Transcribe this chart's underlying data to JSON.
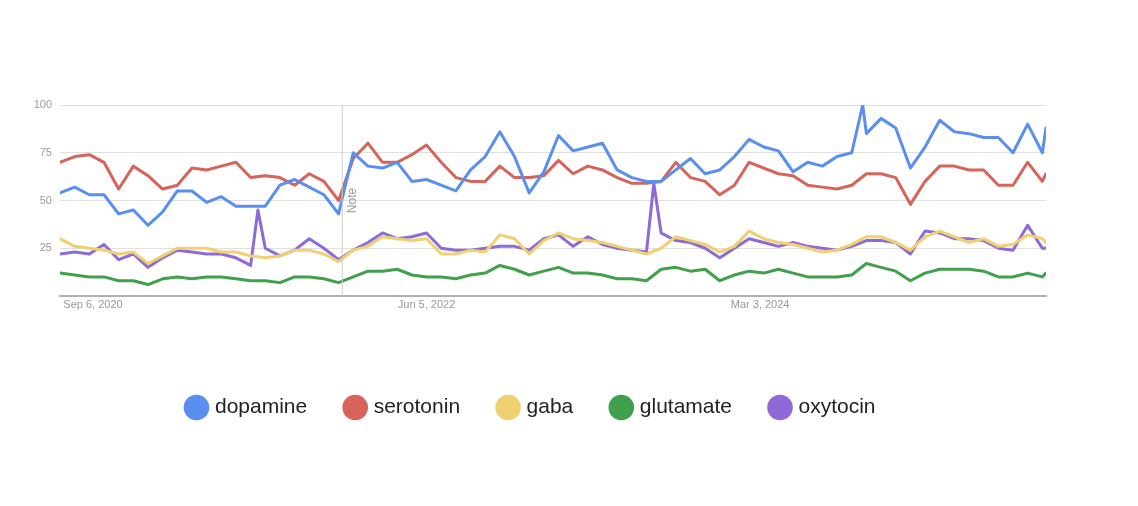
{
  "chart_data": {
    "type": "line",
    "x": [
      "2020-07-05",
      "2020-08-02",
      "2020-08-30",
      "2020-09-27",
      "2020-10-25",
      "2020-11-22",
      "2020-12-20",
      "2021-01-17",
      "2021-02-14",
      "2021-03-14",
      "2021-04-11",
      "2021-05-09",
      "2021-06-06",
      "2021-07-04",
      "2021-08-01",
      "2021-08-29",
      "2021-09-26",
      "2021-10-24",
      "2021-11-21",
      "2021-12-19",
      "2022-01-16",
      "2022-02-13",
      "2022-03-13",
      "2022-04-10",
      "2022-05-08",
      "2022-06-05",
      "2022-07-03",
      "2022-07-31",
      "2022-08-28",
      "2022-09-25",
      "2022-10-23",
      "2022-11-20",
      "2022-12-18",
      "2023-01-15",
      "2023-02-12",
      "2023-03-12",
      "2023-04-09",
      "2023-05-07",
      "2023-06-04",
      "2023-07-02",
      "2023-07-30",
      "2023-08-27",
      "2023-09-24",
      "2023-10-22",
      "2023-11-19",
      "2023-12-17",
      "2024-01-14",
      "2024-02-11",
      "2024-03-10",
      "2024-04-07",
      "2024-05-05",
      "2024-06-02",
      "2024-06-30",
      "2024-07-28",
      "2024-08-25",
      "2024-09-22",
      "2024-10-20",
      "2024-11-17",
      "2024-12-15",
      "2025-01-12",
      "2025-02-09",
      "2025-03-09",
      "2025-04-06",
      "2025-05-04",
      "2025-06-01",
      "2025-06-29",
      "2025-07-27",
      "2025-08-24",
      "2025-08-31"
    ],
    "series": [
      {
        "name": "dopamine",
        "color": "#5a8ff0",
        "x": [
          "2020-07-05",
          "2020-08-02",
          "2020-08-30",
          "2020-09-27",
          "2020-10-25",
          "2020-11-22",
          "2020-12-20",
          "2021-01-17",
          "2021-02-14",
          "2021-03-14",
          "2021-04-11",
          "2021-05-09",
          "2021-06-06",
          "2021-07-04",
          "2021-08-01",
          "2021-08-29",
          "2021-09-26",
          "2021-10-24",
          "2021-11-21",
          "2021-12-19",
          "2022-01-16",
          "2022-02-13",
          "2022-03-13",
          "2022-04-10",
          "2022-05-08",
          "2022-06-05",
          "2022-07-03",
          "2022-07-31",
          "2022-08-28",
          "2022-09-25",
          "2022-10-23",
          "2022-11-20",
          "2022-12-18",
          "2023-01-15",
          "2023-02-12",
          "2023-03-12",
          "2023-04-09",
          "2023-05-07",
          "2023-06-04",
          "2023-07-02",
          "2023-07-30",
          "2023-08-27",
          "2023-09-24",
          "2023-10-22",
          "2023-11-19",
          "2023-12-17",
          "2024-01-14",
          "2024-02-11",
          "2024-03-10",
          "2024-04-07",
          "2024-05-05",
          "2024-06-02",
          "2024-06-30",
          "2024-07-28",
          "2024-08-25",
          "2024-09-15",
          "2024-09-22",
          "2024-10-20",
          "2024-11-17",
          "2024-12-15",
          "2025-01-12",
          "2025-02-09",
          "2025-03-09",
          "2025-04-06",
          "2025-05-04",
          "2025-06-01",
          "2025-06-29",
          "2025-07-27",
          "2025-08-24",
          "2025-08-31"
        ],
        "values": [
          54,
          57,
          53,
          53,
          43,
          45,
          37,
          44,
          55,
          55,
          49,
          52,
          47,
          47,
          47,
          58,
          61,
          57,
          53,
          43,
          75,
          68,
          67,
          70,
          60,
          61,
          58,
          55,
          66,
          73,
          86,
          73,
          54,
          65,
          84,
          76,
          78,
          80,
          66,
          62,
          60,
          60,
          66,
          72,
          64,
          66,
          73,
          82,
          78,
          76,
          65,
          70,
          68,
          73,
          75,
          100,
          85,
          93,
          88,
          67,
          78,
          92,
          86,
          85,
          83,
          83,
          75,
          90,
          75,
          88
        ]
      },
      {
        "name": "serotonin",
        "color": "#d6645a",
        "values": [
          70,
          73,
          74,
          70,
          56,
          68,
          63,
          56,
          58,
          67,
          66,
          68,
          70,
          62,
          63,
          62,
          58,
          64,
          60,
          50,
          72,
          80,
          70,
          70,
          74,
          79,
          70,
          62,
          60,
          60,
          68,
          62,
          62,
          63,
          71,
          64,
          68,
          66,
          62,
          59,
          59,
          60,
          70,
          62,
          60,
          53,
          58,
          70,
          67,
          64,
          63,
          58,
          57,
          56,
          58,
          64,
          64,
          62,
          48,
          60,
          68,
          68,
          66,
          66,
          58,
          58,
          70,
          60,
          64
        ]
      },
      {
        "name": "gaba",
        "color": "#f0d070",
        "values": [
          30,
          26,
          25,
          24,
          22,
          23,
          17,
          21,
          25,
          25,
          25,
          23,
          23,
          21,
          20,
          21,
          24,
          24,
          22,
          18,
          24,
          26,
          31,
          30,
          29,
          30,
          22,
          22,
          24,
          23,
          32,
          30,
          22,
          29,
          33,
          30,
          29,
          28,
          26,
          24,
          22,
          25,
          31,
          29,
          27,
          23,
          26,
          34,
          30,
          28,
          27,
          25,
          23,
          24,
          27,
          31,
          31,
          28,
          24,
          31,
          34,
          31,
          28,
          30,
          26,
          27,
          32,
          30,
          28
        ]
      },
      {
        "name": "glutamate",
        "color": "#41a04c",
        "values": [
          12,
          11,
          10,
          10,
          8,
          8,
          6,
          9,
          10,
          9,
          10,
          10,
          9,
          8,
          8,
          7,
          10,
          10,
          9,
          7,
          10,
          13,
          13,
          14,
          11,
          10,
          10,
          9,
          11,
          12,
          16,
          14,
          11,
          13,
          15,
          12,
          12,
          11,
          9,
          9,
          8,
          14,
          15,
          13,
          14,
          8,
          11,
          13,
          12,
          14,
          12,
          10,
          10,
          10,
          11,
          17,
          15,
          13,
          8,
          12,
          14,
          14,
          14,
          13,
          10,
          10,
          12,
          10,
          12
        ]
      },
      {
        "name": "oxytocin",
        "color": "#8d6ad8",
        "x": [
          "2020-07-05",
          "2020-08-02",
          "2020-08-30",
          "2020-09-27",
          "2020-10-25",
          "2020-11-22",
          "2020-12-20",
          "2021-01-17",
          "2021-02-14",
          "2021-03-14",
          "2021-04-11",
          "2021-05-09",
          "2021-06-06",
          "2021-07-04",
          "2021-07-18",
          "2021-08-01",
          "2021-08-29",
          "2021-09-26",
          "2021-10-24",
          "2021-11-21",
          "2021-12-19",
          "2022-01-16",
          "2022-02-13",
          "2022-03-13",
          "2022-04-10",
          "2022-05-08",
          "2022-06-05",
          "2022-07-03",
          "2022-07-31",
          "2022-08-28",
          "2022-09-25",
          "2022-10-23",
          "2022-11-20",
          "2022-12-18",
          "2023-01-15",
          "2023-02-12",
          "2023-03-12",
          "2023-04-09",
          "2023-05-07",
          "2023-06-04",
          "2023-07-02",
          "2023-07-30",
          "2023-08-13",
          "2023-08-27",
          "2023-09-24",
          "2023-10-22",
          "2023-11-19",
          "2023-12-17",
          "2024-01-14",
          "2024-02-11",
          "2024-03-10",
          "2024-04-07",
          "2024-05-05",
          "2024-06-02",
          "2024-06-30",
          "2024-07-28",
          "2024-08-25",
          "2024-09-22",
          "2024-10-20",
          "2024-11-17",
          "2024-12-15",
          "2025-01-12",
          "2025-02-09",
          "2025-03-09",
          "2025-04-06",
          "2025-05-04",
          "2025-06-01",
          "2025-06-29",
          "2025-07-27",
          "2025-08-24",
          "2025-08-31"
        ],
        "values": [
          22,
          23,
          22,
          27,
          19,
          22,
          15,
          20,
          24,
          23,
          22,
          22,
          20,
          16,
          45,
          25,
          21,
          24,
          30,
          25,
          19,
          24,
          28,
          33,
          30,
          31,
          33,
          25,
          24,
          24,
          25,
          26,
          26,
          24,
          30,
          32,
          26,
          31,
          27,
          25,
          24,
          23,
          59,
          33,
          29,
          28,
          25,
          20,
          25,
          30,
          28,
          26,
          28,
          26,
          25,
          24,
          26,
          29,
          29,
          28,
          22,
          34,
          33,
          30,
          30,
          29,
          25,
          24,
          37,
          25,
          25
        ]
      }
    ],
    "xlim": [
      "2020-07-05",
      "2025-08-31"
    ],
    "xticks": [
      {
        "value": "2020-09-06",
        "label": "Sep 6, 2020"
      },
      {
        "value": "2022-06-05",
        "label": "Jun 5, 2022"
      },
      {
        "value": "2024-03-03",
        "label": "Mar 3, 2024"
      }
    ],
    "ylim": [
      0,
      100
    ],
    "yticks": [
      25,
      50,
      75,
      100
    ],
    "grid": "y",
    "legend": "bottom",
    "marker": "none",
    "line_style": "solid",
    "ref_lines": [
      {
        "axis": "x",
        "value": "2021-12-26",
        "label": "Note",
        "color": "#cccccc"
      }
    ]
  }
}
